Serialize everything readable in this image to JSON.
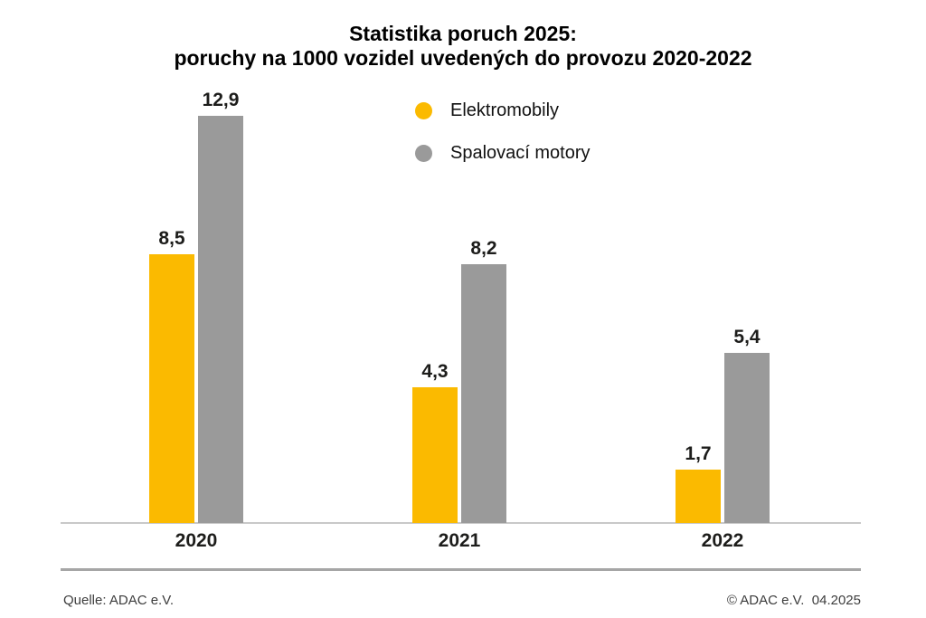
{
  "title": {
    "line1": "Statistika poruch 2025:",
    "line2": "poruchy na 1000 vozidel uvedených do provozu 2020-2022"
  },
  "legend": {
    "items": [
      {
        "label": "Elektromobily",
        "color": "#FBBA00",
        "marker": "circle-icon"
      },
      {
        "label": "Spalovací motory",
        "color": "#9A9A9A",
        "marker": "circle-icon"
      }
    ]
  },
  "chart_data": {
    "type": "bar",
    "title": "Statistika poruch 2025: poruchy na 1000 vozidel uvedených do provozu 2020-2022",
    "categories": [
      "2020",
      "2021",
      "2022"
    ],
    "series": [
      {
        "name": "Elektromobily",
        "color": "#FBBA00",
        "values": [
          8.5,
          4.3,
          1.7
        ]
      },
      {
        "name": "Spalovací motory",
        "color": "#9A9A9A",
        "values": [
          12.9,
          8.2,
          5.4
        ]
      }
    ],
    "value_label_format": "decimal-comma",
    "value_labels_shown": [
      [
        "8,5",
        "4,3",
        "1,7"
      ],
      [
        "12,9",
        "8,2",
        "5,4"
      ]
    ],
    "xlabel": "",
    "ylabel": "",
    "ylim": [
      0,
      13.5
    ],
    "grid": false,
    "y_axis_shown": false,
    "legend_position": "top-center"
  },
  "footer": {
    "source": "Quelle: ADAC e.V.",
    "copyright": "© ADAC e.V.  04.2025"
  }
}
